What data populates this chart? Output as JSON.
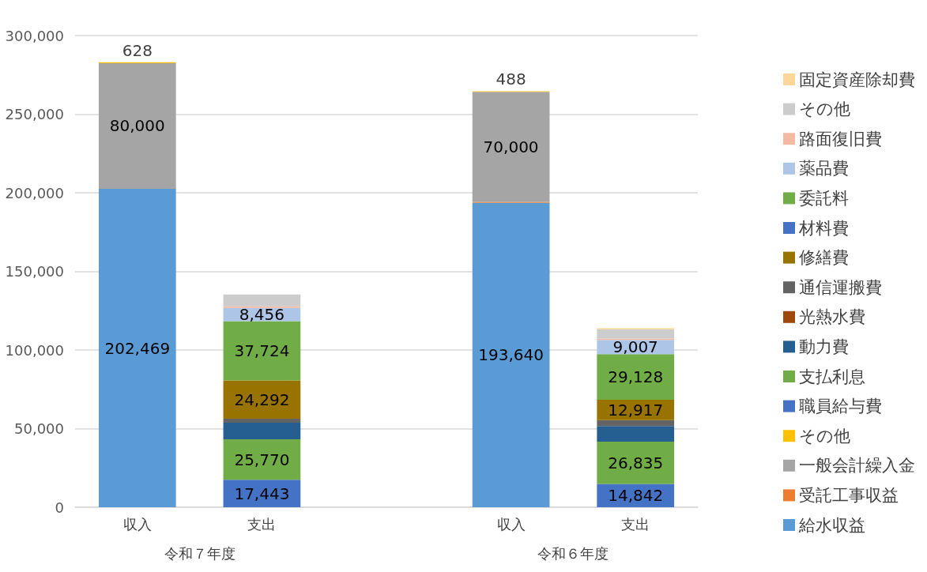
{
  "chart_data": {
    "type": "bar",
    "stacked": true,
    "categories": [
      "収入",
      "支出",
      null,
      "収入",
      "支出"
    ],
    "annotations": [
      "令和７年度",
      "令和６年度"
    ],
    "ylim": [
      0,
      300000
    ],
    "yticks": [
      0,
      {
        "value": 50000,
        "label": "50,000"
      },
      {
        "value": 100000,
        "label": "100,000"
      },
      {
        "value": 150000,
        "label": "150,000"
      },
      {
        "value": 200000,
        "label": "200,000"
      },
      {
        "value": 250000,
        "label": "250,000"
      },
      {
        "value": 300000,
        "label": "300,000"
      }
    ],
    "grid": "y",
    "legend": "right",
    "series": [
      {
        "name": "給水収益",
        "color": "#5b9bd5",
        "values": [
          202469,
          null,
          null,
          193640,
          null
        ],
        "value_labels": [
          "202,469",
          null,
          null,
          "193,640",
          null
        ]
      },
      {
        "name": "受託工事収益",
        "color": "#ed7d31",
        "values": [
          null,
          null,
          null,
          500,
          null
        ]
      },
      {
        "name": "一般会計繰入金",
        "color": "#a5a5a5",
        "values": [
          80000,
          null,
          null,
          70000,
          null
        ],
        "value_labels": [
          "80,000",
          null,
          null,
          "70,000",
          null
        ]
      },
      {
        "name": "その他",
        "color": "#ffc000",
        "values": [
          628,
          null,
          null,
          488,
          null
        ],
        "value_labels": [
          "628",
          null,
          null,
          "488",
          null
        ]
      },
      {
        "name": "職員給与費",
        "color": "#4472c4",
        "values": [
          null,
          17443,
          null,
          null,
          14842
        ],
        "value_labels": [
          null,
          "17,443",
          null,
          null,
          "14,842"
        ]
      },
      {
        "name": "支払利息",
        "color": "#70ad47",
        "values": [
          null,
          25770,
          null,
          null,
          26835
        ],
        "value_labels": [
          null,
          "25,770",
          null,
          null,
          "26,835"
        ]
      },
      {
        "name": "動力費",
        "color": "#255e91",
        "values": [
          null,
          10600,
          null,
          null,
          10000
        ]
      },
      {
        "name": "光熱水費",
        "color": "#9e480e",
        "values": [
          null,
          null,
          null,
          null,
          null
        ]
      },
      {
        "name": "通信運搬費",
        "color": "#636363",
        "values": [
          null,
          2500,
          null,
          null,
          3700
        ]
      },
      {
        "name": "修繕費",
        "color": "#997300",
        "values": [
          null,
          24292,
          null,
          null,
          12917
        ],
        "value_labels": [
          null,
          "24,292",
          null,
          null,
          "12,917"
        ]
      },
      {
        "name": "材料費",
        "color": "#4472c4",
        "values": [
          null,
          null,
          null,
          null,
          null
        ]
      },
      {
        "name": "委託料",
        "color": "#70ad47",
        "values": [
          null,
          37724,
          null,
          null,
          29128
        ],
        "value_labels": [
          null,
          "37,724",
          null,
          null,
          "29,128"
        ]
      },
      {
        "name": "薬品費",
        "color": "#adc6e8",
        "values": [
          null,
          8456,
          null,
          null,
          9007
        ],
        "value_labels": [
          null,
          "8,456",
          null,
          null,
          "9,007"
        ]
      },
      {
        "name": "路面復旧費",
        "color": "#f4b9a3",
        "values": [
          null,
          1000,
          null,
          null,
          800
        ]
      },
      {
        "name": "その他",
        "color": "#cccccc",
        "values": [
          null,
          7500,
          null,
          null,
          5900
        ]
      },
      {
        "name": "固定資産除却費",
        "color": "#ffd699",
        "values": [
          null,
          null,
          null,
          null,
          800
        ]
      }
    ]
  }
}
